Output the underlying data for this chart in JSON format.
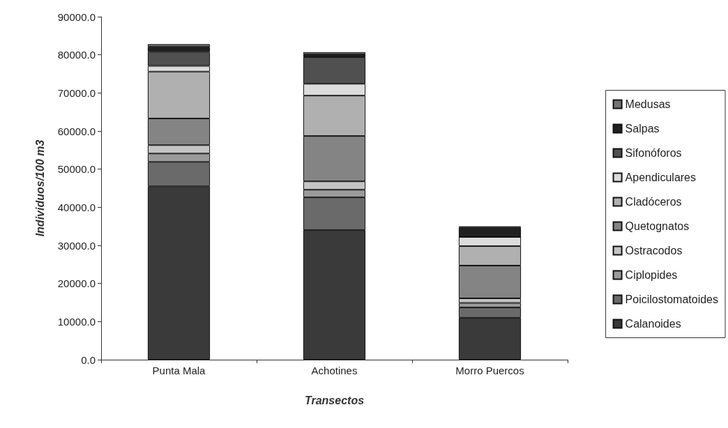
{
  "chart_data": {
    "type": "bar",
    "stacked": true,
    "xlabel": "Transectos",
    "ylabel": "Individuos/100 m3",
    "categories": [
      "Punta Mala",
      "Achotines",
      "Morro Puercos"
    ],
    "series": [
      {
        "name": "Calanoides",
        "color": "#3a3a3a",
        "values": [
          45500,
          34000,
          11000
        ]
      },
      {
        "name": "Poicilostomatoides",
        "color": "#6a6a6a",
        "values": [
          6400,
          8600,
          2700
        ]
      },
      {
        "name": "Ciplopides",
        "color": "#9a9a9a",
        "values": [
          2200,
          2000,
          1200
        ]
      },
      {
        "name": "Ostracodos",
        "color": "#c4c4c4",
        "values": [
          2200,
          2200,
          1200
        ]
      },
      {
        "name": "Quetognatos",
        "color": "#848484",
        "values": [
          7000,
          11900,
          8600
        ]
      },
      {
        "name": "Cladóceros",
        "color": "#b0b0b0",
        "values": [
          12300,
          10600,
          5100
        ]
      },
      {
        "name": "Apendiculares",
        "color": "#dcdcdc",
        "values": [
          1500,
          3100,
          2400
        ]
      },
      {
        "name": "Sifonóforos",
        "color": "#505050",
        "values": [
          3700,
          7000,
          0
        ]
      },
      {
        "name": "Salpas",
        "color": "#202020",
        "values": [
          1300,
          700,
          2500
        ]
      },
      {
        "name": "Medusas",
        "color": "#747474",
        "values": [
          700,
          600,
          300
        ]
      }
    ],
    "ylim": [
      0,
      90000
    ],
    "yticks": [
      {
        "value": 0,
        "label": "0.0"
      },
      {
        "value": 10000,
        "label": "10000.0"
      },
      {
        "value": 20000,
        "label": "20000.0"
      },
      {
        "value": 30000,
        "label": "30000.0"
      },
      {
        "value": 40000,
        "label": "40000.0"
      },
      {
        "value": 50000,
        "label": "50000.0"
      },
      {
        "value": 60000,
        "label": "60000.0"
      },
      {
        "value": 70000,
        "label": "70000.0"
      },
      {
        "value": 80000,
        "label": "80000.0"
      },
      {
        "value": 90000,
        "label": "90000.0"
      }
    ],
    "grid": false,
    "legend": "right"
  }
}
